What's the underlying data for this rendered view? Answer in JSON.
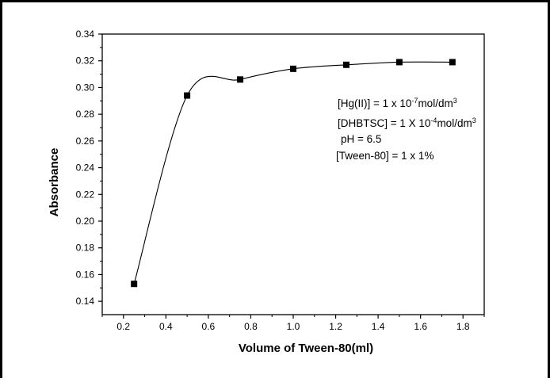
{
  "chart_data": {
    "type": "scatter",
    "title": "",
    "xlabel": "Volume of Tween-80(ml)",
    "ylabel": "Absorbance",
    "xlim": [
      0.1,
      1.9
    ],
    "ylim": [
      0.13,
      0.34
    ],
    "x_ticks": [
      0.2,
      0.4,
      0.6,
      0.8,
      1.0,
      1.2,
      1.4,
      1.6,
      1.8
    ],
    "x_tick_labels": [
      "0.2",
      "0.4",
      "0.6",
      "0.8",
      "1.0",
      "1.2",
      "1.4",
      "1.6",
      "1.8"
    ],
    "y_ticks": [
      0.14,
      0.16,
      0.18,
      0.2,
      0.22,
      0.24,
      0.26,
      0.28,
      0.3,
      0.32,
      0.34
    ],
    "y_tick_labels": [
      "0.14",
      "0.16",
      "0.18",
      "0.20",
      "0.22",
      "0.24",
      "0.26",
      "0.28",
      "0.30",
      "0.32",
      "0.34"
    ],
    "grid": false,
    "legend": "none",
    "series": [
      {
        "marker": "square",
        "line": "smooth spline",
        "color": "#000000",
        "x": [
          0.25,
          0.5,
          0.75,
          1.0,
          1.25,
          1.5,
          1.75
        ],
        "y": [
          0.153,
          0.294,
          0.306,
          0.314,
          0.317,
          0.319,
          0.319
        ]
      }
    ],
    "annotations": [
      {
        "parts": [
          {
            "t": "[Hg(II)] = 1 x 10"
          },
          {
            "t": "-7",
            "sup": true
          },
          {
            "t": "mol/dm"
          },
          {
            "t": "3",
            "sup": true
          }
        ]
      },
      {
        "parts": [
          {
            "t": "[DHBTSC] = 1 X 10"
          },
          {
            "t": "-4",
            "sup": true
          },
          {
            "t": "mol/dm"
          },
          {
            "t": "3",
            "sup": true
          }
        ]
      },
      {
        "parts": [
          {
            "t": "pH = 6.5"
          }
        ]
      },
      {
        "parts": [
          {
            "t": "[Tween-80] = 1 x 1%"
          }
        ]
      }
    ]
  }
}
